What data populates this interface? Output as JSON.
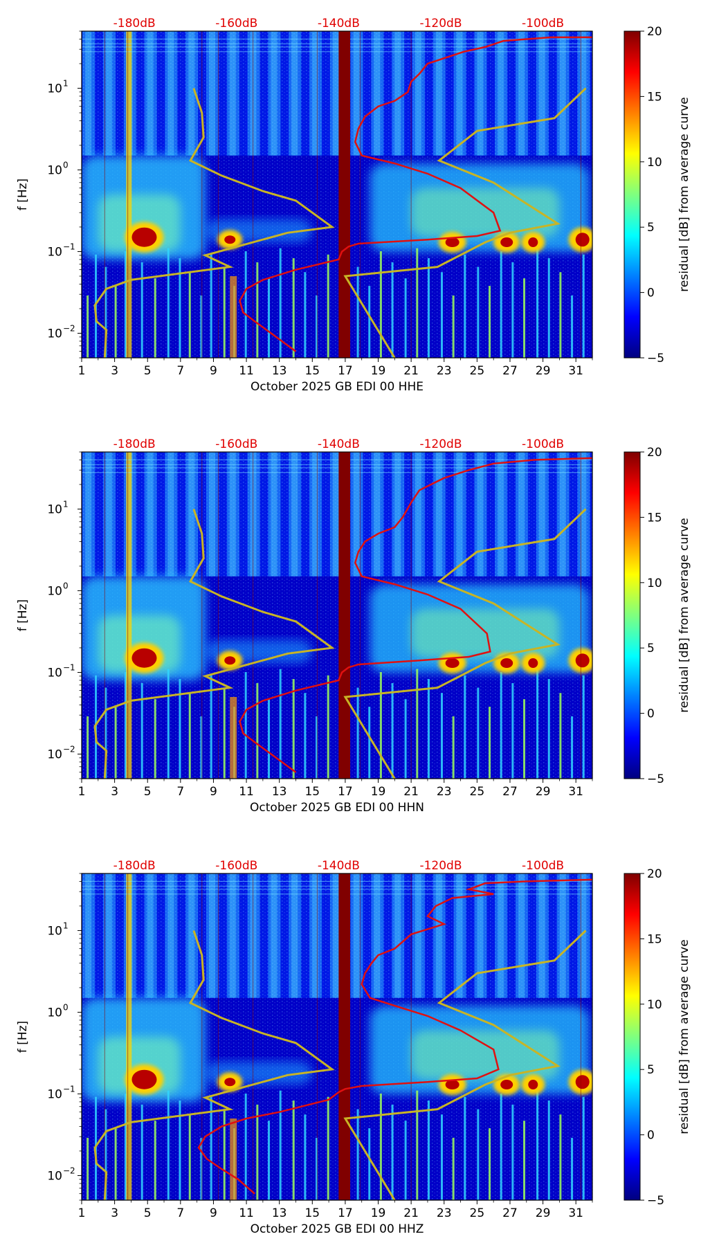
{
  "chart_data": [
    {
      "type": "heatmap",
      "subtype": "spectrogram-residual",
      "channel": "HHE",
      "xlabel": "October 2025 GB EDI 00 HHE",
      "ylabel": "f [Hz]",
      "x_range": [
        1,
        32
      ],
      "x_ticks": [
        "1",
        "3",
        "5",
        "7",
        "9",
        "11",
        "13",
        "15",
        "17",
        "19",
        "21",
        "23",
        "25",
        "27",
        "29",
        "31"
      ],
      "y_scale": "log",
      "y_range": [
        0.005,
        50
      ],
      "y_ticks": [
        {
          "value": 0.01,
          "base": "10",
          "exp": "−2"
        },
        {
          "value": 0.1,
          "base": "10",
          "exp": "−1"
        },
        {
          "value": 1,
          "base": "10",
          "exp": "0"
        },
        {
          "value": 10,
          "base": "10",
          "exp": "1"
        }
      ],
      "db_scale_labels": [
        "-180dB",
        "-160dB",
        "-140dB",
        "-120dB",
        "-100dB"
      ],
      "db_scale_positions_day": [
        4.2,
        10.4,
        16.6,
        22.8,
        29.0
      ],
      "colorbar": {
        "label": "residual [dB] from average curve",
        "min": -5,
        "max": 20,
        "ticks": [
          "20",
          "15",
          "10",
          "5",
          "0",
          "−5"
        ],
        "colormap": "jet"
      },
      "data_gap": {
        "start_day": 16.6,
        "end_day": 17.3
      },
      "average_curve": {
        "color": "#e01010",
        "points": [
          [
            32.0,
            42
          ],
          [
            29.5,
            42
          ],
          [
            26.6,
            38
          ],
          [
            25.5,
            32
          ],
          [
            24.2,
            28
          ],
          [
            22.0,
            20
          ],
          [
            21.5,
            15
          ],
          [
            21.0,
            12
          ],
          [
            20.8,
            9
          ],
          [
            20.0,
            7
          ],
          [
            19.0,
            6
          ],
          [
            18.2,
            4.5
          ],
          [
            17.8,
            3.2
          ],
          [
            17.6,
            2.2
          ],
          [
            18.0,
            1.5
          ],
          [
            20.0,
            1.2
          ],
          [
            22.0,
            0.9
          ],
          [
            24.0,
            0.6
          ],
          [
            26.0,
            0.3
          ],
          [
            26.4,
            0.18
          ],
          [
            25.0,
            0.155
          ],
          [
            22.0,
            0.14
          ],
          [
            17.8,
            0.125
          ],
          [
            17.2,
            0.115
          ],
          [
            16.8,
            0.1
          ],
          [
            16.6,
            0.08
          ],
          [
            14.0,
            0.06
          ],
          [
            12.0,
            0.045
          ],
          [
            11.0,
            0.035
          ],
          [
            10.6,
            0.025
          ],
          [
            10.8,
            0.018
          ],
          [
            11.5,
            0.014
          ],
          [
            12.5,
            0.01
          ],
          [
            14.0,
            0.006
          ]
        ]
      },
      "model_curves": {
        "color": "#c8b426",
        "low_model": [
          [
            7.8,
            10
          ],
          [
            8.3,
            5
          ],
          [
            8.4,
            2.5
          ],
          [
            7.6,
            1.3
          ],
          [
            9.5,
            0.85
          ],
          [
            12.0,
            0.55
          ],
          [
            14.0,
            0.42
          ],
          [
            16.2,
            0.2
          ],
          [
            13.5,
            0.17
          ],
          [
            8.5,
            0.09
          ],
          [
            10.0,
            0.065
          ],
          [
            4.0,
            0.045
          ],
          [
            2.5,
            0.035
          ],
          [
            1.8,
            0.022
          ],
          [
            1.9,
            0.014
          ],
          [
            2.5,
            0.011
          ],
          [
            2.4,
            0.005
          ]
        ],
        "high_model": [
          [
            31.6,
            10
          ],
          [
            29.7,
            4.3
          ],
          [
            25.0,
            3.0
          ],
          [
            22.7,
            1.3
          ],
          [
            26.0,
            0.7
          ],
          [
            29.9,
            0.22
          ],
          [
            27.0,
            0.17
          ],
          [
            25.5,
            0.13
          ],
          [
            22.6,
            0.065
          ],
          [
            17.0,
            0.05
          ],
          [
            20.0,
            0.005
          ]
        ]
      }
    },
    {
      "type": "heatmap",
      "subtype": "spectrogram-residual",
      "channel": "HHN",
      "xlabel": "October 2025 GB EDI 00 HHN",
      "ylabel": "f [Hz]",
      "x_range": [
        1,
        32
      ],
      "x_ticks": [
        "1",
        "3",
        "5",
        "7",
        "9",
        "11",
        "13",
        "15",
        "17",
        "19",
        "21",
        "23",
        "25",
        "27",
        "29",
        "31"
      ],
      "y_scale": "log",
      "y_range": [
        0.005,
        50
      ],
      "y_ticks": [
        {
          "value": 0.01,
          "base": "10",
          "exp": "−2"
        },
        {
          "value": 0.1,
          "base": "10",
          "exp": "−1"
        },
        {
          "value": 1,
          "base": "10",
          "exp": "0"
        },
        {
          "value": 10,
          "base": "10",
          "exp": "1"
        }
      ],
      "db_scale_labels": [
        "-180dB",
        "-160dB",
        "-140dB",
        "-120dB",
        "-100dB"
      ],
      "db_scale_positions_day": [
        4.2,
        10.4,
        16.6,
        22.8,
        29.0
      ],
      "colorbar": {
        "label": "residual [dB] from average curve",
        "min": -5,
        "max": 20,
        "ticks": [
          "20",
          "15",
          "10",
          "5",
          "0",
          "−5"
        ],
        "colormap": "jet"
      },
      "data_gap": {
        "start_day": 16.6,
        "end_day": 17.3
      },
      "average_curve": {
        "color": "#e01010",
        "points": [
          [
            32.0,
            42
          ],
          [
            28.5,
            40
          ],
          [
            26.0,
            36
          ],
          [
            24.5,
            30
          ],
          [
            23.0,
            24
          ],
          [
            21.5,
            17
          ],
          [
            21.0,
            12
          ],
          [
            20.5,
            8
          ],
          [
            20.0,
            6
          ],
          [
            19.0,
            5
          ],
          [
            18.2,
            4.0
          ],
          [
            17.8,
            3.0
          ],
          [
            17.6,
            2.2
          ],
          [
            18.0,
            1.5
          ],
          [
            20.0,
            1.2
          ],
          [
            22.0,
            0.9
          ],
          [
            24.0,
            0.6
          ],
          [
            25.6,
            0.3
          ],
          [
            25.8,
            0.18
          ],
          [
            24.5,
            0.155
          ],
          [
            21.5,
            0.14
          ],
          [
            17.8,
            0.125
          ],
          [
            17.2,
            0.115
          ],
          [
            16.8,
            0.1
          ],
          [
            16.6,
            0.08
          ],
          [
            14.0,
            0.06
          ],
          [
            12.0,
            0.045
          ],
          [
            11.0,
            0.035
          ],
          [
            10.6,
            0.025
          ],
          [
            10.8,
            0.018
          ],
          [
            11.5,
            0.014
          ],
          [
            12.5,
            0.01
          ],
          [
            14.0,
            0.006
          ]
        ]
      },
      "model_curves": {
        "color": "#c8b426",
        "low_model": [
          [
            7.8,
            10
          ],
          [
            8.3,
            5
          ],
          [
            8.4,
            2.5
          ],
          [
            7.6,
            1.3
          ],
          [
            9.5,
            0.85
          ],
          [
            12.0,
            0.55
          ],
          [
            14.0,
            0.42
          ],
          [
            16.2,
            0.2
          ],
          [
            13.5,
            0.17
          ],
          [
            8.5,
            0.09
          ],
          [
            10.0,
            0.065
          ],
          [
            4.0,
            0.045
          ],
          [
            2.5,
            0.035
          ],
          [
            1.8,
            0.022
          ],
          [
            1.9,
            0.014
          ],
          [
            2.5,
            0.011
          ],
          [
            2.4,
            0.005
          ]
        ],
        "high_model": [
          [
            31.6,
            10
          ],
          [
            29.7,
            4.3
          ],
          [
            25.0,
            3.0
          ],
          [
            22.7,
            1.3
          ],
          [
            26.0,
            0.7
          ],
          [
            29.9,
            0.22
          ],
          [
            27.0,
            0.17
          ],
          [
            25.5,
            0.13
          ],
          [
            22.6,
            0.065
          ],
          [
            17.0,
            0.05
          ],
          [
            20.0,
            0.005
          ]
        ]
      }
    },
    {
      "type": "heatmap",
      "subtype": "spectrogram-residual",
      "channel": "HHZ",
      "xlabel": "October 2025 GB EDI 00 HHZ",
      "ylabel": "f [Hz]",
      "x_range": [
        1,
        32
      ],
      "x_ticks": [
        "1",
        "3",
        "5",
        "7",
        "9",
        "11",
        "13",
        "15",
        "17",
        "19",
        "21",
        "23",
        "25",
        "27",
        "29",
        "31"
      ],
      "y_scale": "log",
      "y_range": [
        0.005,
        50
      ],
      "y_ticks": [
        {
          "value": 0.01,
          "base": "10",
          "exp": "−2"
        },
        {
          "value": 0.1,
          "base": "10",
          "exp": "−1"
        },
        {
          "value": 1,
          "base": "10",
          "exp": "0"
        },
        {
          "value": 10,
          "base": "10",
          "exp": "1"
        }
      ],
      "db_scale_labels": [
        "-180dB",
        "-160dB",
        "-140dB",
        "-120dB",
        "-100dB"
      ],
      "db_scale_positions_day": [
        4.2,
        10.4,
        16.6,
        22.8,
        29.0
      ],
      "colorbar": {
        "label": "residual [dB] from average curve",
        "min": -5,
        "max": 20,
        "ticks": [
          "20",
          "15",
          "10",
          "5",
          "0",
          "−5"
        ],
        "colormap": "jet"
      },
      "data_gap": {
        "start_day": 16.6,
        "end_day": 17.3
      },
      "average_curve": {
        "color": "#e01010",
        "points": [
          [
            32.0,
            42
          ],
          [
            28.0,
            40
          ],
          [
            25.5,
            38
          ],
          [
            24.5,
            32
          ],
          [
            26.0,
            28
          ],
          [
            23.5,
            25
          ],
          [
            22.5,
            20
          ],
          [
            22.0,
            15
          ],
          [
            23.0,
            12
          ],
          [
            21.0,
            9
          ],
          [
            20.0,
            6
          ],
          [
            19.0,
            5
          ],
          [
            18.6,
            4.0
          ],
          [
            18.2,
            3.0
          ],
          [
            18.0,
            2.2
          ],
          [
            18.5,
            1.5
          ],
          [
            20.0,
            1.2
          ],
          [
            22.0,
            0.9
          ],
          [
            24.0,
            0.6
          ],
          [
            26.0,
            0.35
          ],
          [
            26.3,
            0.2
          ],
          [
            25.0,
            0.155
          ],
          [
            22.0,
            0.14
          ],
          [
            18.0,
            0.125
          ],
          [
            17.0,
            0.115
          ],
          [
            16.6,
            0.105
          ],
          [
            16.0,
            0.085
          ],
          [
            13.0,
            0.06
          ],
          [
            11.0,
            0.05
          ],
          [
            9.5,
            0.04
          ],
          [
            8.5,
            0.03
          ],
          [
            8.1,
            0.022
          ],
          [
            8.6,
            0.016
          ],
          [
            9.5,
            0.012
          ],
          [
            10.5,
            0.009
          ],
          [
            11.5,
            0.006
          ]
        ]
      },
      "model_curves": {
        "color": "#c8b426",
        "low_model": [
          [
            7.8,
            10
          ],
          [
            8.3,
            5
          ],
          [
            8.4,
            2.5
          ],
          [
            7.6,
            1.3
          ],
          [
            9.5,
            0.85
          ],
          [
            12.0,
            0.55
          ],
          [
            14.0,
            0.42
          ],
          [
            16.2,
            0.2
          ],
          [
            13.5,
            0.17
          ],
          [
            8.5,
            0.09
          ],
          [
            10.0,
            0.065
          ],
          [
            4.0,
            0.045
          ],
          [
            2.5,
            0.035
          ],
          [
            1.8,
            0.022
          ],
          [
            1.9,
            0.014
          ],
          [
            2.5,
            0.011
          ],
          [
            2.4,
            0.005
          ]
        ],
        "high_model": [
          [
            31.6,
            10
          ],
          [
            29.7,
            4.3
          ],
          [
            25.0,
            3.0
          ],
          [
            22.7,
            1.3
          ],
          [
            26.0,
            0.7
          ],
          [
            29.9,
            0.22
          ],
          [
            27.0,
            0.17
          ],
          [
            25.5,
            0.13
          ],
          [
            22.6,
            0.065
          ],
          [
            17.0,
            0.05
          ],
          [
            20.0,
            0.005
          ]
        ]
      }
    }
  ],
  "colormap_stops": [
    "#00007f",
    "#0000ff",
    "#007fff",
    "#00ffff",
    "#7fff7f",
    "#ffff00",
    "#ff7f00",
    "#ff0000",
    "#7f0000"
  ]
}
